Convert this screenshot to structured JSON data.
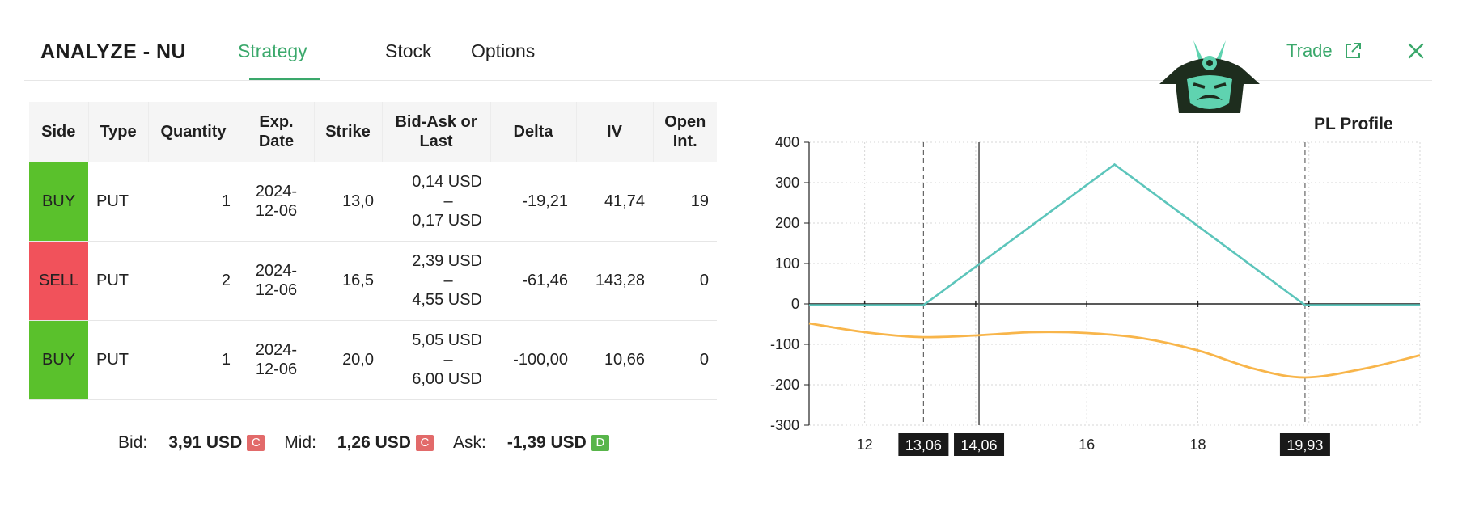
{
  "header": {
    "title": "ANALYZE - NU",
    "tabs": [
      "Strategy",
      "Stock",
      "Options"
    ],
    "active_tab": "Strategy",
    "trade_label": "Trade"
  },
  "table": {
    "columns": [
      "Side",
      "Type",
      "Quantity",
      "Exp.\nDate",
      "Strike",
      "Bid-Ask or\nLast",
      "Delta",
      "IV",
      "Open\nInt."
    ],
    "rows": [
      {
        "side": "BUY",
        "type": "PUT",
        "quantity": "1",
        "exp": "2024-\n12-06",
        "strike": "13,0",
        "bid": "0,14 USD",
        "sep": "–",
        "ask": "0,17 USD",
        "delta": "-19,21",
        "iv": "41,74",
        "oi": "19"
      },
      {
        "side": "SELL",
        "type": "PUT",
        "quantity": "2",
        "exp": "2024-\n12-06",
        "strike": "16,5",
        "bid": "2,39 USD",
        "sep": "–",
        "ask": "4,55 USD",
        "delta": "-61,46",
        "iv": "143,28",
        "oi": "0"
      },
      {
        "side": "BUY",
        "type": "PUT",
        "quantity": "1",
        "exp": "2024-\n12-06",
        "strike": "20,0",
        "bid": "5,05 USD",
        "sep": "–",
        "ask": "6,00 USD",
        "delta": "-100,00",
        "iv": "10,66",
        "oi": "0"
      }
    ]
  },
  "summary": {
    "bid_label": "Bid:",
    "bid_value": "3,91 USD",
    "bid_badge": "C",
    "mid_label": "Mid:",
    "mid_value": "1,26 USD",
    "mid_badge": "C",
    "ask_label": "Ask:",
    "ask_value": "-1,39 USD",
    "ask_badge": "D"
  },
  "colors": {
    "accent": "#3aa86b",
    "buy": "#5ac12c",
    "sell": "#f1525b",
    "expiry_line": "#5cc5bb",
    "today_line": "#f8b54a"
  },
  "chart_data": {
    "type": "line",
    "title": "PL Profile",
    "xlim": [
      11,
      22
    ],
    "ylim": [
      -300,
      400
    ],
    "x_ticks": [
      12,
      16,
      18
    ],
    "y_ticks": [
      400,
      300,
      200,
      100,
      0,
      -100,
      -200,
      -300
    ],
    "grid": true,
    "highlighted_x": [
      {
        "label": "13,06",
        "x": 13.06,
        "style": "dashed"
      },
      {
        "label": "14,06",
        "x": 14.06,
        "style": "solid"
      },
      {
        "label": "19,93",
        "x": 19.93,
        "style": "dashed"
      }
    ],
    "series": [
      {
        "type": "expiration",
        "x": [
          11,
          13.06,
          16.5,
          19.93,
          22
        ],
        "y": [
          -3,
          -3,
          345,
          -3,
          -3
        ]
      },
      {
        "type": "today",
        "x": [
          11,
          12,
          13,
          14,
          15,
          16,
          17,
          18,
          19,
          19.93,
          21,
          22
        ],
        "y": [
          -48,
          -70,
          -82,
          -78,
          -70,
          -72,
          -85,
          -115,
          -160,
          -182,
          -160,
          -127
        ]
      }
    ]
  }
}
